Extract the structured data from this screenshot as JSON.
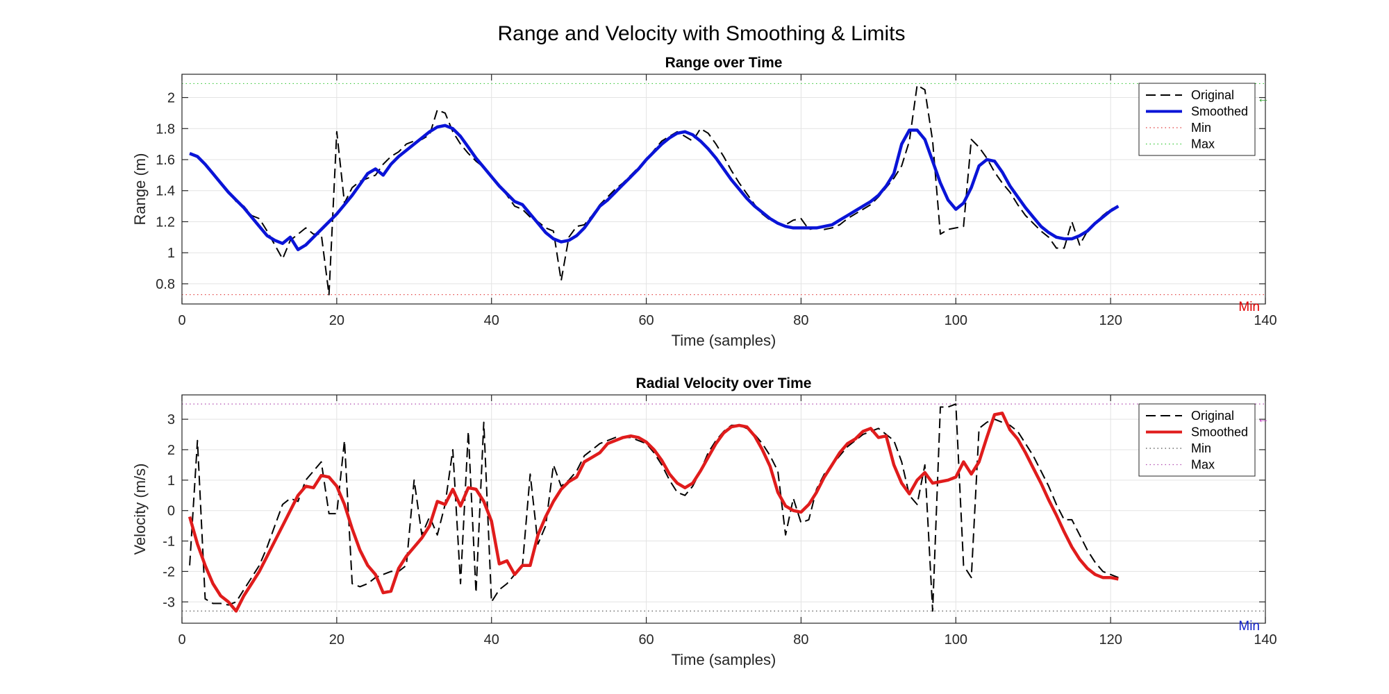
{
  "figure": {
    "title": "Range and Velocity with Smoothing & Limits"
  },
  "chart_data": [
    {
      "type": "line",
      "title": "Range over Time",
      "xlabel": "Time (samples)",
      "ylabel": "Range (m)",
      "xlim": [
        0,
        140
      ],
      "ylim": [
        0.67,
        2.15
      ],
      "xticks": [
        0,
        20,
        40,
        60,
        80,
        100,
        120,
        140
      ],
      "yticks": [
        0.8,
        1,
        1.2,
        1.4,
        1.6,
        1.8,
        2
      ],
      "ytick_labels": [
        "0.8",
        "1",
        "1.2",
        "1.4",
        "1.6",
        "1.8",
        "2"
      ],
      "grid": true,
      "legend_position": "top-right",
      "x": [
        1,
        2,
        3,
        4,
        5,
        6,
        7,
        8,
        9,
        10,
        11,
        12,
        13,
        14,
        15,
        16,
        17,
        18,
        19,
        20,
        21,
        22,
        23,
        24,
        25,
        26,
        27,
        28,
        29,
        30,
        31,
        32,
        33,
        34,
        35,
        36,
        37,
        38,
        39,
        40,
        41,
        42,
        43,
        44,
        45,
        46,
        47,
        48,
        49,
        50,
        51,
        52,
        53,
        54,
        55,
        56,
        57,
        58,
        59,
        60,
        61,
        62,
        63,
        64,
        65,
        66,
        67,
        68,
        69,
        70,
        71,
        72,
        73,
        74,
        75,
        76,
        77,
        78,
        79,
        80,
        81,
        82,
        83,
        84,
        85,
        86,
        87,
        88,
        89,
        90,
        91,
        92,
        93,
        94,
        95,
        96,
        97,
        98,
        99,
        100,
        101,
        102,
        103,
        104,
        105,
        106,
        107,
        108,
        109,
        110,
        111,
        112,
        113,
        114,
        115,
        116,
        117,
        118,
        119,
        120,
        121
      ],
      "series": [
        {
          "name": "Original",
          "color": "#000000",
          "style": "dashed",
          "values": [
            1.64,
            1.62,
            1.57,
            1.51,
            1.45,
            1.39,
            1.33,
            1.3,
            1.24,
            1.22,
            1.14,
            1.05,
            0.96,
            1.08,
            1.12,
            1.16,
            1.12,
            1.12,
            0.73,
            1.78,
            1.32,
            1.42,
            1.46,
            1.48,
            1.5,
            1.57,
            1.62,
            1.65,
            1.7,
            1.72,
            1.73,
            1.76,
            1.92,
            1.9,
            1.78,
            1.7,
            1.64,
            1.59,
            1.55,
            1.49,
            1.43,
            1.37,
            1.3,
            1.28,
            1.23,
            1.2,
            1.16,
            1.14,
            0.82,
            1.1,
            1.17,
            1.18,
            1.24,
            1.31,
            1.36,
            1.41,
            1.45,
            1.5,
            1.55,
            1.6,
            1.66,
            1.72,
            1.75,
            1.78,
            1.75,
            1.72,
            1.8,
            1.77,
            1.7,
            1.62,
            1.53,
            1.45,
            1.38,
            1.31,
            1.25,
            1.21,
            1.19,
            1.18,
            1.21,
            1.22,
            1.15,
            1.16,
            1.15,
            1.16,
            1.18,
            1.22,
            1.25,
            1.28,
            1.31,
            1.36,
            1.42,
            1.48,
            1.56,
            1.72,
            2.08,
            2.05,
            1.72,
            1.12,
            1.15,
            1.16,
            1.17,
            1.73,
            1.68,
            1.61,
            1.52,
            1.45,
            1.39,
            1.31,
            1.24,
            1.19,
            1.14,
            1.1,
            1.03,
            1.03,
            1.2,
            1.05,
            1.14,
            1.19,
            1.24,
            1.28,
            1.3
          ]
        },
        {
          "name": "Smoothed",
          "color": "#0a14d7",
          "style": "solid",
          "values": [
            1.64,
            1.62,
            1.57,
            1.51,
            1.45,
            1.39,
            1.34,
            1.29,
            1.23,
            1.17,
            1.11,
            1.08,
            1.06,
            1.1,
            1.02,
            1.05,
            1.1,
            1.15,
            1.2,
            1.25,
            1.31,
            1.37,
            1.44,
            1.51,
            1.54,
            1.5,
            1.57,
            1.62,
            1.66,
            1.7,
            1.74,
            1.78,
            1.81,
            1.82,
            1.8,
            1.75,
            1.68,
            1.61,
            1.55,
            1.49,
            1.43,
            1.38,
            1.33,
            1.31,
            1.25,
            1.19,
            1.13,
            1.09,
            1.07,
            1.08,
            1.11,
            1.16,
            1.23,
            1.3,
            1.34,
            1.39,
            1.44,
            1.49,
            1.54,
            1.6,
            1.65,
            1.7,
            1.74,
            1.77,
            1.78,
            1.76,
            1.72,
            1.67,
            1.61,
            1.54,
            1.47,
            1.41,
            1.35,
            1.3,
            1.26,
            1.22,
            1.19,
            1.17,
            1.16,
            1.16,
            1.16,
            1.16,
            1.17,
            1.18,
            1.21,
            1.24,
            1.27,
            1.3,
            1.33,
            1.37,
            1.43,
            1.51,
            1.7,
            1.79,
            1.79,
            1.73,
            1.59,
            1.45,
            1.34,
            1.28,
            1.32,
            1.42,
            1.56,
            1.6,
            1.59,
            1.52,
            1.43,
            1.36,
            1.29,
            1.23,
            1.17,
            1.13,
            1.1,
            1.09,
            1.09,
            1.11,
            1.14,
            1.19,
            1.23,
            1.27,
            1.3
          ]
        },
        {
          "name": "Min",
          "color": "#e03a3a",
          "style": "dotted",
          "constant": 0.73
        },
        {
          "name": "Max",
          "color": "#3ac83a",
          "style": "dotted",
          "constant": 2.09
        }
      ],
      "annotations": [
        {
          "text": "Min",
          "color": "#e00000",
          "position": "bottom-right"
        },
        {
          "text": "←",
          "color": "#2ca02c",
          "position": "right-edge",
          "y": 2.0
        }
      ]
    },
    {
      "type": "line",
      "title": "Radial Velocity over Time",
      "xlabel": "Time (samples)",
      "ylabel": "Velocity (m/s)",
      "xlim": [
        0,
        140
      ],
      "ylim": [
        -3.7,
        3.8
      ],
      "xticks": [
        0,
        20,
        40,
        60,
        80,
        100,
        120,
        140
      ],
      "yticks": [
        -3,
        -2,
        -1,
        0,
        1,
        2,
        3
      ],
      "ytick_labels": [
        "-3",
        "-2",
        "-1",
        "0",
        "1",
        "2",
        "3"
      ],
      "grid": true,
      "legend_position": "top-right",
      "x": [
        1,
        2,
        3,
        4,
        5,
        6,
        7,
        8,
        9,
        10,
        11,
        12,
        13,
        14,
        15,
        16,
        17,
        18,
        19,
        20,
        21,
        22,
        23,
        24,
        25,
        26,
        27,
        28,
        29,
        30,
        31,
        32,
        33,
        34,
        35,
        36,
        37,
        38,
        39,
        40,
        41,
        42,
        43,
        44,
        45,
        46,
        47,
        48,
        49,
        50,
        51,
        52,
        53,
        54,
        55,
        56,
        57,
        58,
        59,
        60,
        61,
        62,
        63,
        64,
        65,
        66,
        67,
        68,
        69,
        70,
        71,
        72,
        73,
        74,
        75,
        76,
        77,
        78,
        79,
        80,
        81,
        82,
        83,
        84,
        85,
        86,
        87,
        88,
        89,
        90,
        91,
        92,
        93,
        94,
        95,
        96,
        97,
        98,
        99,
        100,
        101,
        102,
        103,
        104,
        105,
        106,
        107,
        108,
        109,
        110,
        111,
        112,
        113,
        114,
        115,
        116,
        117,
        118,
        119,
        120,
        121
      ],
      "series": [
        {
          "name": "Original",
          "color": "#000000",
          "style": "dashed",
          "values": [
            -1.8,
            2.3,
            -2.9,
            -3.05,
            -3.05,
            -3.1,
            -3.0,
            -2.6,
            -2.2,
            -1.8,
            -1.2,
            -0.5,
            0.2,
            0.4,
            0.3,
            1.0,
            1.3,
            1.6,
            -0.1,
            -0.1,
            2.3,
            -2.4,
            -2.5,
            -2.4,
            -2.2,
            -2.1,
            -2.0,
            -2.0,
            -1.8,
            1.0,
            -0.8,
            -0.2,
            -0.8,
            0.2,
            2.0,
            -2.4,
            2.6,
            -2.7,
            2.9,
            -3.0,
            -2.6,
            -2.4,
            -2.1,
            -1.8,
            1.2,
            -1.1,
            -0.5,
            1.5,
            0.8,
            1.0,
            1.3,
            1.8,
            2.0,
            2.2,
            2.3,
            2.4,
            2.4,
            2.4,
            2.3,
            2.2,
            1.9,
            1.5,
            1.0,
            0.6,
            0.5,
            0.8,
            1.3,
            1.9,
            2.3,
            2.6,
            2.8,
            2.8,
            2.7,
            2.5,
            2.2,
            1.8,
            1.3,
            -0.8,
            0.4,
            -0.4,
            -0.3,
            0.7,
            1.2,
            1.5,
            1.8,
            2.1,
            2.3,
            2.5,
            2.6,
            2.7,
            2.5,
            2.3,
            1.6,
            0.5,
            0.2,
            1.5,
            -3.3,
            3.4,
            3.4,
            3.5,
            -1.8,
            -2.2,
            2.7,
            2.9,
            3.0,
            2.9,
            2.8,
            2.6,
            2.2,
            1.8,
            1.3,
            0.8,
            0.2,
            -0.3,
            -0.3,
            -0.8,
            -1.3,
            -1.7,
            -2.0,
            -2.1,
            -2.2
          ]
        },
        {
          "name": "Smoothed",
          "color": "#e01c1c",
          "style": "solid",
          "values": [
            -0.2,
            -1.1,
            -1.8,
            -2.4,
            -2.8,
            -3.0,
            -3.3,
            -2.8,
            -2.4,
            -2.0,
            -1.5,
            -1.0,
            -0.5,
            0.0,
            0.5,
            0.8,
            0.75,
            1.15,
            1.1,
            0.8,
            0.2,
            -0.6,
            -1.3,
            -1.8,
            -2.1,
            -2.7,
            -2.65,
            -1.9,
            -1.5,
            -1.2,
            -0.9,
            -0.5,
            0.3,
            0.2,
            0.7,
            0.15,
            0.75,
            0.7,
            0.3,
            -0.35,
            -1.75,
            -1.65,
            -2.1,
            -1.8,
            -1.8,
            -0.8,
            -0.2,
            0.3,
            0.7,
            0.95,
            1.1,
            1.6,
            1.75,
            1.9,
            2.2,
            2.3,
            2.4,
            2.45,
            2.4,
            2.25,
            2.0,
            1.65,
            1.2,
            0.9,
            0.75,
            0.9,
            1.3,
            1.75,
            2.2,
            2.55,
            2.75,
            2.8,
            2.75,
            2.45,
            2.0,
            1.45,
            0.6,
            0.15,
            0.0,
            -0.05,
            0.2,
            0.6,
            1.1,
            1.5,
            1.9,
            2.2,
            2.35,
            2.6,
            2.7,
            2.4,
            2.45,
            1.5,
            0.9,
            0.55,
            1.0,
            1.25,
            0.9,
            0.95,
            1.0,
            1.1,
            1.6,
            1.2,
            1.6,
            2.4,
            3.15,
            3.2,
            2.65,
            2.35,
            1.9,
            1.4,
            0.9,
            0.35,
            -0.15,
            -0.7,
            -1.2,
            -1.6,
            -1.9,
            -2.1,
            -2.2,
            -2.2,
            -2.25
          ]
        },
        {
          "name": "Min",
          "color": "#4a4a4a",
          "style": "dotted",
          "constant": -3.3
        },
        {
          "name": "Max",
          "color": "#b04ab0",
          "style": "dotted",
          "constant": 3.5
        }
      ],
      "annotations": [
        {
          "text": "Min",
          "color": "#1020c8",
          "position": "bottom-right"
        },
        {
          "text": "←",
          "color": "#c03ac0",
          "position": "right-edge",
          "y": 3.05
        }
      ]
    }
  ]
}
